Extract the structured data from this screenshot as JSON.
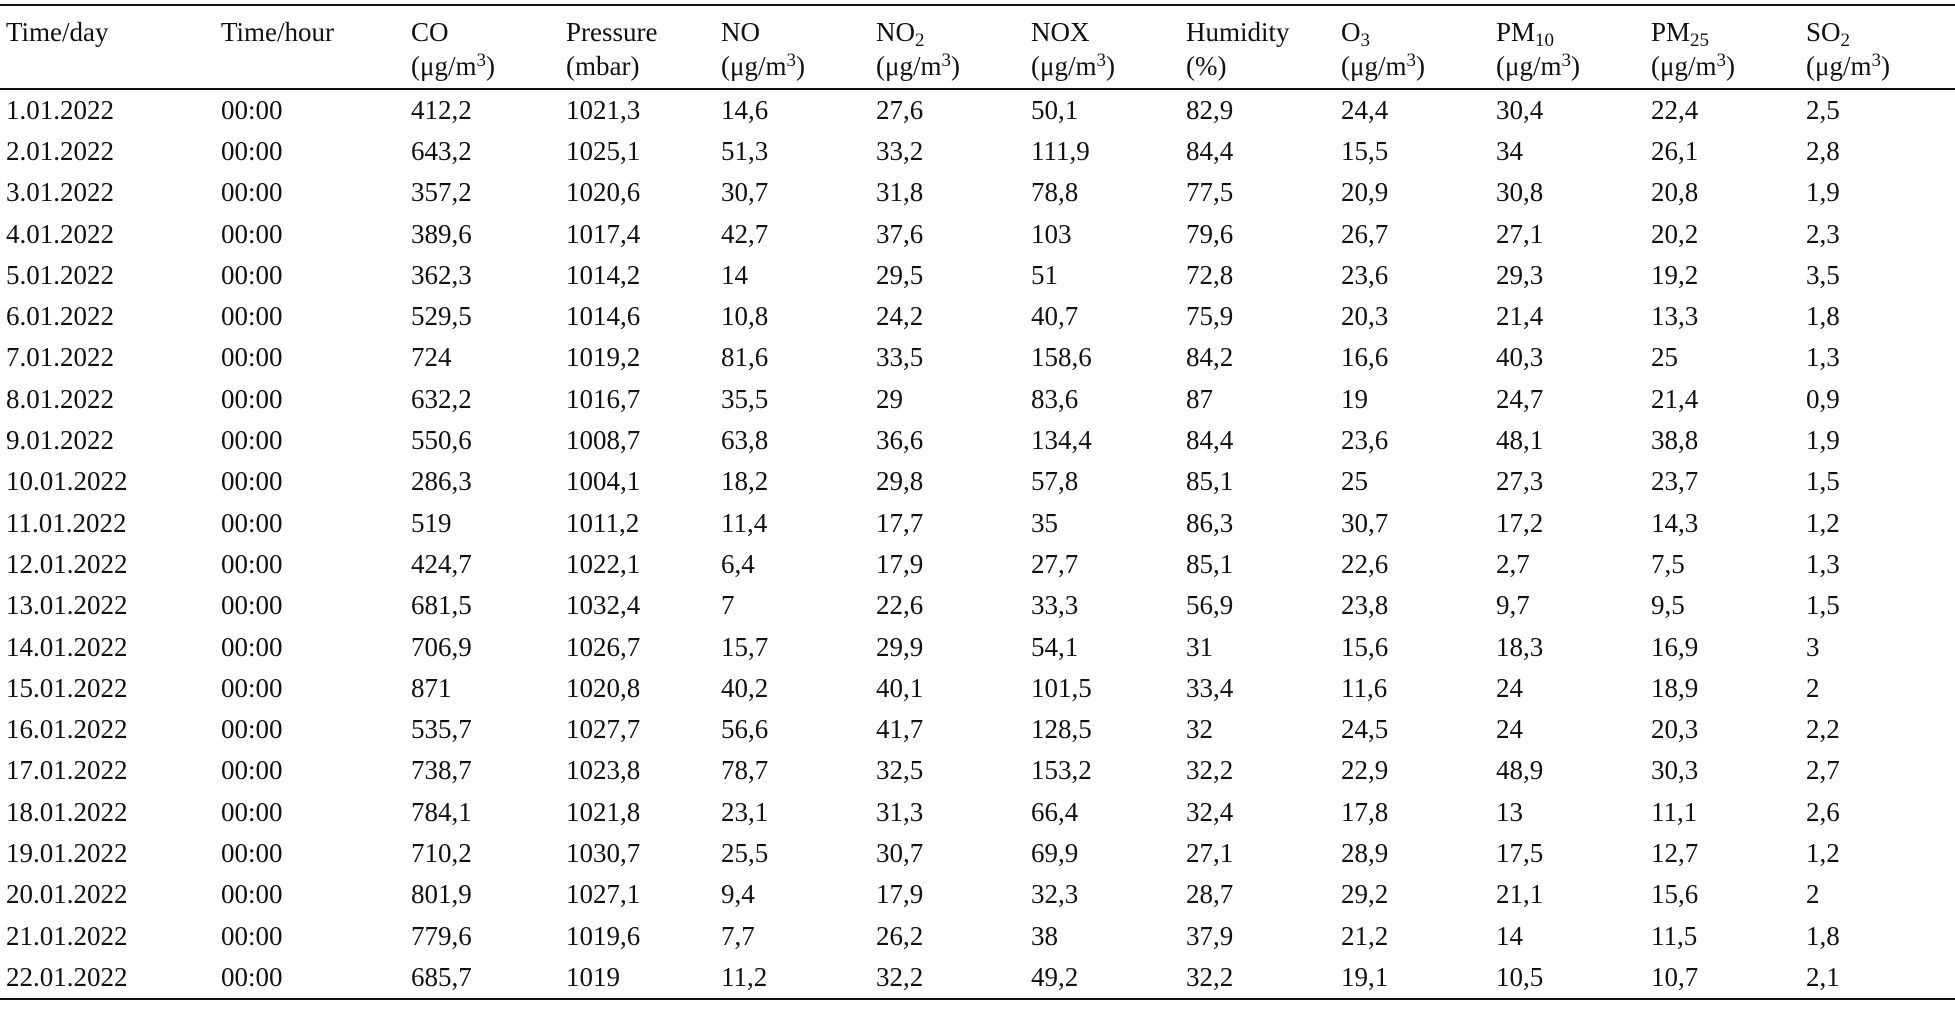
{
  "table": {
    "headers": [
      {
        "line1": "Time/day",
        "line1_sub": "",
        "line2": "",
        "line2_sup": "",
        "line2_tail": ""
      },
      {
        "line1": "Time/hour",
        "line1_sub": "",
        "line2": "",
        "line2_sup": "",
        "line2_tail": ""
      },
      {
        "line1": "CO",
        "line1_sub": "",
        "line2": "(μg/m",
        "line2_sup": "3",
        "line2_tail": ")"
      },
      {
        "line1": "Pressure",
        "line1_sub": "",
        "line2": "(mbar)",
        "line2_sup": "",
        "line2_tail": ""
      },
      {
        "line1": "NO",
        "line1_sub": "",
        "line2": "(μg/m",
        "line2_sup": "3",
        "line2_tail": ")"
      },
      {
        "line1": "NO",
        "line1_sub": "2",
        "line2": "(μg/m",
        "line2_sup": "3",
        "line2_tail": ")"
      },
      {
        "line1": "NOX",
        "line1_sub": "",
        "line2": "(μg/m",
        "line2_sup": "3",
        "line2_tail": ")"
      },
      {
        "line1": "Humidity",
        "line1_sub": "",
        "line2": "(%)",
        "line2_sup": "",
        "line2_tail": ""
      },
      {
        "line1": "O",
        "line1_sub": "3",
        "line2": "(μg/m",
        "line2_sup": "3",
        "line2_tail": ")"
      },
      {
        "line1": "PM",
        "line1_sub": "10",
        "line2": "(μg/m",
        "line2_sup": "3",
        "line2_tail": ")"
      },
      {
        "line1": "PM",
        "line1_sub": "25",
        "line2": "(μg/m",
        "line2_sup": "3",
        "line2_tail": ")"
      },
      {
        "line1": "SO",
        "line1_sub": "2",
        "line2": "(μg/m",
        "line2_sup": "3",
        "line2_tail": ")"
      }
    ],
    "rows": [
      [
        "1.01.2022",
        "00:00",
        "412,2",
        "1021,3",
        "14,6",
        "27,6",
        "50,1",
        "82,9",
        "24,4",
        "30,4",
        "22,4",
        "2,5"
      ],
      [
        "2.01.2022",
        "00:00",
        "643,2",
        "1025,1",
        "51,3",
        "33,2",
        "111,9",
        "84,4",
        "15,5",
        "34",
        "26,1",
        "2,8"
      ],
      [
        "3.01.2022",
        "00:00",
        "357,2",
        "1020,6",
        "30,7",
        "31,8",
        "78,8",
        "77,5",
        "20,9",
        "30,8",
        "20,8",
        "1,9"
      ],
      [
        "4.01.2022",
        "00:00",
        "389,6",
        "1017,4",
        "42,7",
        "37,6",
        "103",
        "79,6",
        "26,7",
        "27,1",
        "20,2",
        "2,3"
      ],
      [
        "5.01.2022",
        "00:00",
        "362,3",
        "1014,2",
        "14",
        "29,5",
        "51",
        "72,8",
        "23,6",
        "29,3",
        "19,2",
        "3,5"
      ],
      [
        "6.01.2022",
        "00:00",
        "529,5",
        "1014,6",
        "10,8",
        "24,2",
        "40,7",
        "75,9",
        "20,3",
        "21,4",
        "13,3",
        "1,8"
      ],
      [
        "7.01.2022",
        "00:00",
        "724",
        "1019,2",
        "81,6",
        "33,5",
        "158,6",
        "84,2",
        "16,6",
        "40,3",
        "25",
        "1,3"
      ],
      [
        "8.01.2022",
        "00:00",
        "632,2",
        "1016,7",
        "35,5",
        "29",
        "83,6",
        "87",
        "19",
        "24,7",
        "21,4",
        "0,9"
      ],
      [
        "9.01.2022",
        "00:00",
        "550,6",
        "1008,7",
        "63,8",
        "36,6",
        "134,4",
        "84,4",
        "23,6",
        "48,1",
        "38,8",
        "1,9"
      ],
      [
        "10.01.2022",
        "00:00",
        "286,3",
        "1004,1",
        "18,2",
        "29,8",
        "57,8",
        "85,1",
        "25",
        "27,3",
        "23,7",
        "1,5"
      ],
      [
        "11.01.2022",
        "00:00",
        "519",
        "1011,2",
        "11,4",
        "17,7",
        "35",
        "86,3",
        "30,7",
        "17,2",
        "14,3",
        "1,2"
      ],
      [
        "12.01.2022",
        "00:00",
        "424,7",
        "1022,1",
        "6,4",
        "17,9",
        "27,7",
        "85,1",
        "22,6",
        "2,7",
        "7,5",
        "1,3"
      ],
      [
        "13.01.2022",
        "00:00",
        "681,5",
        "1032,4",
        "7",
        "22,6",
        "33,3",
        "56,9",
        "23,8",
        "9,7",
        "9,5",
        "1,5"
      ],
      [
        "14.01.2022",
        "00:00",
        "706,9",
        "1026,7",
        "15,7",
        "29,9",
        "54,1",
        "31",
        "15,6",
        "18,3",
        "16,9",
        "3"
      ],
      [
        "15.01.2022",
        "00:00",
        "871",
        "1020,8",
        "40,2",
        "40,1",
        "101,5",
        "33,4",
        "11,6",
        "24",
        "18,9",
        "2"
      ],
      [
        "16.01.2022",
        "00:00",
        "535,7",
        "1027,7",
        "56,6",
        "41,7",
        "128,5",
        "32",
        "24,5",
        "24",
        "20,3",
        "2,2"
      ],
      [
        "17.01.2022",
        "00:00",
        "738,7",
        "1023,8",
        "78,7",
        "32,5",
        "153,2",
        "32,2",
        "22,9",
        "48,9",
        "30,3",
        "2,7"
      ],
      [
        "18.01.2022",
        "00:00",
        "784,1",
        "1021,8",
        "23,1",
        "31,3",
        "66,4",
        "32,4",
        "17,8",
        "13",
        "11,1",
        "2,6"
      ],
      [
        "19.01.2022",
        "00:00",
        "710,2",
        "1030,7",
        "25,5",
        "30,7",
        "69,9",
        "27,1",
        "28,9",
        "17,5",
        "12,7",
        "1,2"
      ],
      [
        "20.01.2022",
        "00:00",
        "801,9",
        "1027,1",
        "9,4",
        "17,9",
        "32,3",
        "28,7",
        "29,2",
        "21,1",
        "15,6",
        "2"
      ],
      [
        "21.01.2022",
        "00:00",
        "779,6",
        "1019,6",
        "7,7",
        "26,2",
        "38",
        "37,9",
        "21,2",
        "14",
        "11,5",
        "1,8"
      ],
      [
        "22.01.2022",
        "00:00",
        "685,7",
        "1019",
        "11,2",
        "32,2",
        "49,2",
        "32,2",
        "19,1",
        "10,5",
        "10,7",
        "2,1"
      ]
    ]
  }
}
